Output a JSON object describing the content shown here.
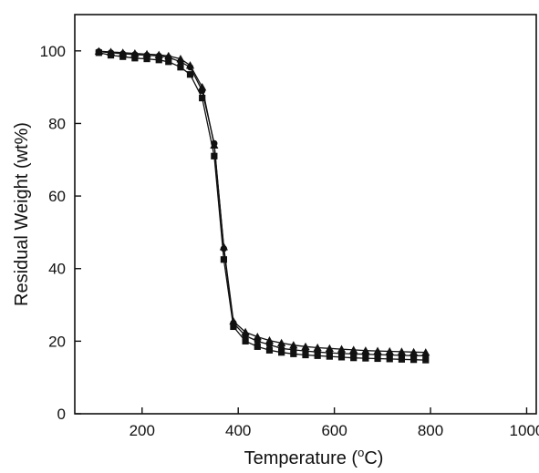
{
  "chart_data": {
    "type": "line",
    "title": "",
    "xlabel": "Temperature",
    "xlabel_unit": "(°C)",
    "ylabel": "Residual Weight (wt%)",
    "xlim": [
      60,
      1020
    ],
    "ylim": [
      0,
      110
    ],
    "xticks": [
      200,
      400,
      600,
      800,
      1000
    ],
    "yticks": [
      0,
      20,
      40,
      60,
      80,
      100
    ],
    "xtick_labels": [
      "200",
      "400",
      "600",
      "800",
      "1000"
    ],
    "ytick_labels": [
      "0",
      "20",
      "40",
      "60",
      "80",
      "100"
    ],
    "grid": false,
    "legend": "none",
    "colors": {
      "line": "#111111",
      "marker": "#111111",
      "axis": "#111111"
    },
    "series": [
      {
        "marker": "circle",
        "x": [
          110,
          135,
          160,
          185,
          210,
          235,
          255,
          280,
          300,
          325,
          350,
          370,
          390,
          415,
          440,
          465,
          490,
          515,
          540,
          565,
          590,
          615,
          640,
          665,
          690,
          715,
          740,
          765,
          790
        ],
        "y": [
          99.8,
          99.5,
          99.2,
          99.0,
          98.8,
          98.6,
          98.2,
          97.0,
          95.5,
          89.0,
          74.5,
          45.5,
          25.0,
          21.5,
          20.0,
          19.0,
          18.0,
          17.6,
          17.3,
          17.0,
          16.8,
          16.6,
          16.5,
          16.4,
          16.3,
          16.2,
          16.1,
          16.0,
          16.0
        ]
      },
      {
        "marker": "triangle",
        "x": [
          110,
          135,
          160,
          185,
          210,
          235,
          255,
          280,
          300,
          325,
          350,
          370,
          390,
          415,
          440,
          465,
          490,
          515,
          540,
          565,
          590,
          615,
          640,
          665,
          690,
          715,
          740,
          765,
          790
        ],
        "y": [
          99.9,
          99.7,
          99.5,
          99.3,
          99.1,
          98.9,
          98.6,
          97.8,
          96.0,
          90.0,
          74.0,
          46.0,
          25.5,
          22.5,
          21.2,
          20.2,
          19.5,
          18.9,
          18.5,
          18.2,
          18.0,
          17.8,
          17.6,
          17.4,
          17.3,
          17.2,
          17.1,
          17.0,
          16.9
        ]
      },
      {
        "marker": "square",
        "x": [
          110,
          135,
          160,
          185,
          210,
          235,
          255,
          280,
          300,
          325,
          350,
          370,
          390,
          415,
          440,
          465,
          490,
          515,
          540,
          565,
          590,
          615,
          640,
          665,
          690,
          715,
          740,
          765,
          790
        ],
        "y": [
          99.5,
          98.8,
          98.4,
          98.0,
          97.8,
          97.5,
          97.0,
          95.5,
          93.5,
          87.0,
          71.0,
          42.5,
          24.0,
          20.0,
          18.5,
          17.5,
          16.9,
          16.5,
          16.2,
          16.0,
          15.8,
          15.6,
          15.4,
          15.3,
          15.2,
          15.1,
          15.0,
          14.9,
          14.8
        ]
      }
    ]
  }
}
